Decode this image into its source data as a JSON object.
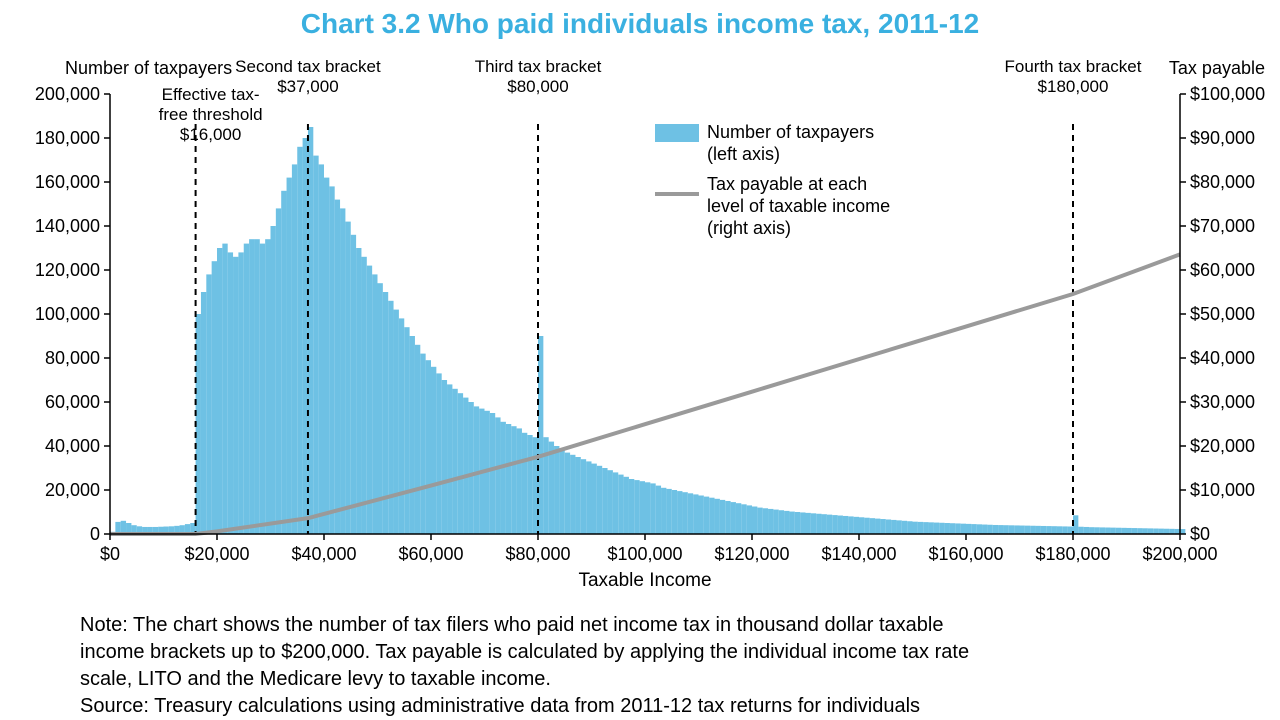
{
  "title": "Chart 3.2 Who paid individuals income tax, 2011-12",
  "axis_left_title": "Number of taxpayers",
  "axis_right_title": "Tax payable",
  "x_title": "Taxable Income",
  "note_line1": "Note: The chart shows the number of tax filers who paid net income tax in thousand dollar taxable",
  "note_line2": "income brackets up to $200,000. Tax payable is calculated by applying the individual income tax rate",
  "note_line3": "scale, LITO and the Medicare levy to taxable income.",
  "note_line4": "Source: Treasury calculations using administrative data from 2011-12 tax returns for individuals",
  "legend": {
    "series1_l1": "Number of taxpayers",
    "series1_l2": "(left axis)",
    "series2_l1": "Tax payable at each",
    "series2_l2": "level of taxable income",
    "series2_l3": "(right axis)"
  },
  "annotations": {
    "a1_l1": "Effective tax-",
    "a1_l2": "free threshold",
    "a1_l3": "$16,000",
    "a1_x": 16000,
    "a2_l1": "Second tax bracket",
    "a2_l2": "$37,000",
    "a2_x": 37000,
    "a3_l1": "Third tax bracket",
    "a3_l2": "$80,000",
    "a3_x": 80000,
    "a4_l1": "Fourth tax bracket",
    "a4_l2": "$180,000",
    "a4_x": 180000
  },
  "chart": {
    "type": "bar+line-dual-axis",
    "x_min": 0,
    "x_max": 200000,
    "x_step": 20000,
    "y_left_min": 0,
    "y_left_max": 200000,
    "y_left_step": 20000,
    "y_right_min": 0,
    "y_right_max": 100000,
    "y_right_step": 10000,
    "bar_color": "#6ec1e4",
    "line_color": "#9a9a9a",
    "tick_color": "#000000",
    "ref_line_color": "#000000",
    "background": "#ffffff",
    "title_color": "#3ab0e0",
    "line_width": 4,
    "bar_bin_width": 1000,
    "x_ticks": [
      "$0",
      "$20,000",
      "$40,000",
      "$60,000",
      "$80,000",
      "$100,000",
      "$120,000",
      "$140,000",
      "$160,000",
      "$180,000",
      "$200,000"
    ],
    "y_left_ticks": [
      "0",
      "20,000",
      "40,000",
      "60,000",
      "80,000",
      "100,000",
      "120,000",
      "140,000",
      "160,000",
      "180,000",
      "200,000"
    ],
    "y_right_ticks": [
      "$0",
      "$10,000",
      "$20,000",
      "$30,000",
      "$40,000",
      "$50,000",
      "$60,000",
      "$70,000",
      "$80,000",
      "$90,000",
      "$100,000"
    ],
    "bars": [
      [
        0,
        1000
      ],
      [
        1000,
        5500
      ],
      [
        2000,
        6000
      ],
      [
        3000,
        5000
      ],
      [
        4000,
        4000
      ],
      [
        5000,
        3500
      ],
      [
        6000,
        3200
      ],
      [
        7000,
        3200
      ],
      [
        8000,
        3200
      ],
      [
        9000,
        3300
      ],
      [
        10000,
        3400
      ],
      [
        11000,
        3500
      ],
      [
        12000,
        3700
      ],
      [
        13000,
        4000
      ],
      [
        14000,
        4500
      ],
      [
        15000,
        5000
      ],
      [
        16000,
        100000
      ],
      [
        17000,
        110000
      ],
      [
        18000,
        118000
      ],
      [
        19000,
        124000
      ],
      [
        20000,
        130000
      ],
      [
        21000,
        132000
      ],
      [
        22000,
        128000
      ],
      [
        23000,
        126000
      ],
      [
        24000,
        128000
      ],
      [
        25000,
        132000
      ],
      [
        26000,
        134000
      ],
      [
        27000,
        134000
      ],
      [
        28000,
        132000
      ],
      [
        29000,
        134000
      ],
      [
        30000,
        140000
      ],
      [
        31000,
        148000
      ],
      [
        32000,
        156000
      ],
      [
        33000,
        162000
      ],
      [
        34000,
        168000
      ],
      [
        35000,
        176000
      ],
      [
        36000,
        180000
      ],
      [
        37000,
        185000
      ],
      [
        38000,
        172000
      ],
      [
        39000,
        168000
      ],
      [
        40000,
        162000
      ],
      [
        41000,
        158000
      ],
      [
        42000,
        152000
      ],
      [
        43000,
        148000
      ],
      [
        44000,
        142000
      ],
      [
        45000,
        136000
      ],
      [
        46000,
        130000
      ],
      [
        47000,
        126000
      ],
      [
        48000,
        122000
      ],
      [
        49000,
        118000
      ],
      [
        50000,
        114000
      ],
      [
        51000,
        110000
      ],
      [
        52000,
        106000
      ],
      [
        53000,
        102000
      ],
      [
        54000,
        98000
      ],
      [
        55000,
        94000
      ],
      [
        56000,
        90000
      ],
      [
        57000,
        86000
      ],
      [
        58000,
        82000
      ],
      [
        59000,
        79000
      ],
      [
        60000,
        76000
      ],
      [
        61000,
        73000
      ],
      [
        62000,
        70000
      ],
      [
        63000,
        68000
      ],
      [
        64000,
        66000
      ],
      [
        65000,
        64000
      ],
      [
        66000,
        62000
      ],
      [
        67000,
        60000
      ],
      [
        68000,
        58000
      ],
      [
        69000,
        57000
      ],
      [
        70000,
        56000
      ],
      [
        71000,
        55000
      ],
      [
        72000,
        53000
      ],
      [
        73000,
        51000
      ],
      [
        74000,
        50000
      ],
      [
        75000,
        49000
      ],
      [
        76000,
        48000
      ],
      [
        77000,
        46000
      ],
      [
        78000,
        45000
      ],
      [
        79000,
        44000
      ],
      [
        80000,
        90000
      ],
      [
        81000,
        44000
      ],
      [
        82000,
        42000
      ],
      [
        83000,
        40000
      ],
      [
        84000,
        39000
      ],
      [
        85000,
        37000
      ],
      [
        86000,
        36000
      ],
      [
        87000,
        35000
      ],
      [
        88000,
        34000
      ],
      [
        89000,
        33000
      ],
      [
        90000,
        32000
      ],
      [
        91000,
        31000
      ],
      [
        92000,
        30000
      ],
      [
        93000,
        29000
      ],
      [
        94000,
        28000
      ],
      [
        95000,
        27000
      ],
      [
        96000,
        26000
      ],
      [
        97000,
        25000
      ],
      [
        98000,
        24500
      ],
      [
        99000,
        24000
      ],
      [
        100000,
        23500
      ],
      [
        101000,
        23000
      ],
      [
        102000,
        22000
      ],
      [
        103000,
        21000
      ],
      [
        104000,
        20500
      ],
      [
        105000,
        20000
      ],
      [
        106000,
        19500
      ],
      [
        107000,
        19000
      ],
      [
        108000,
        18500
      ],
      [
        109000,
        18000
      ],
      [
        110000,
        17500
      ],
      [
        111000,
        17000
      ],
      [
        112000,
        16500
      ],
      [
        113000,
        16000
      ],
      [
        114000,
        15500
      ],
      [
        115000,
        15000
      ],
      [
        116000,
        14500
      ],
      [
        117000,
        14000
      ],
      [
        118000,
        13500
      ],
      [
        119000,
        13000
      ],
      [
        120000,
        12500
      ],
      [
        121000,
        12000
      ],
      [
        122000,
        11700
      ],
      [
        123000,
        11400
      ],
      [
        124000,
        11100
      ],
      [
        125000,
        10800
      ],
      [
        126000,
        10500
      ],
      [
        127000,
        10200
      ],
      [
        128000,
        10000
      ],
      [
        129000,
        9800
      ],
      [
        130000,
        9600
      ],
      [
        131000,
        9400
      ],
      [
        132000,
        9200
      ],
      [
        133000,
        9000
      ],
      [
        134000,
        8800
      ],
      [
        135000,
        8600
      ],
      [
        136000,
        8400
      ],
      [
        137000,
        8200
      ],
      [
        138000,
        8000
      ],
      [
        139000,
        7800
      ],
      [
        140000,
        7600
      ],
      [
        141000,
        7400
      ],
      [
        142000,
        7200
      ],
      [
        143000,
        7000
      ],
      [
        144000,
        6800
      ],
      [
        145000,
        6600
      ],
      [
        146000,
        6400
      ],
      [
        147000,
        6200
      ],
      [
        148000,
        6000
      ],
      [
        149000,
        5800
      ],
      [
        150000,
        5600
      ],
      [
        151000,
        5500
      ],
      [
        152000,
        5400
      ],
      [
        153000,
        5300
      ],
      [
        154000,
        5200
      ],
      [
        155000,
        5100
      ],
      [
        156000,
        5000
      ],
      [
        157000,
        4900
      ],
      [
        158000,
        4800
      ],
      [
        159000,
        4700
      ],
      [
        160000,
        4600
      ],
      [
        161000,
        4500
      ],
      [
        162000,
        4400
      ],
      [
        163000,
        4300
      ],
      [
        164000,
        4200
      ],
      [
        165000,
        4100
      ],
      [
        166000,
        4050
      ],
      [
        167000,
        4000
      ],
      [
        168000,
        3950
      ],
      [
        169000,
        3900
      ],
      [
        170000,
        3850
      ],
      [
        171000,
        3800
      ],
      [
        172000,
        3750
      ],
      [
        173000,
        3700
      ],
      [
        174000,
        3650
      ],
      [
        175000,
        3600
      ],
      [
        176000,
        3550
      ],
      [
        177000,
        3500
      ],
      [
        178000,
        3450
      ],
      [
        179000,
        3400
      ],
      [
        180000,
        8500
      ],
      [
        181000,
        3300
      ],
      [
        182000,
        3200
      ],
      [
        183000,
        3100
      ],
      [
        184000,
        3050
      ],
      [
        185000,
        3000
      ],
      [
        186000,
        2950
      ],
      [
        187000,
        2900
      ],
      [
        188000,
        2850
      ],
      [
        189000,
        2800
      ],
      [
        190000,
        2750
      ],
      [
        191000,
        2700
      ],
      [
        192000,
        2650
      ],
      [
        193000,
        2600
      ],
      [
        194000,
        2550
      ],
      [
        195000,
        2500
      ],
      [
        196000,
        2450
      ],
      [
        197000,
        2400
      ],
      [
        198000,
        2350
      ],
      [
        199000,
        2300
      ],
      [
        200000,
        2250
      ]
    ],
    "line_points": [
      [
        0,
        0
      ],
      [
        16000,
        0
      ],
      [
        20000,
        600
      ],
      [
        37000,
        3600
      ],
      [
        60000,
        11000
      ],
      [
        80000,
        17550
      ],
      [
        100000,
        24950
      ],
      [
        120000,
        32350
      ],
      [
        150000,
        43450
      ],
      [
        180000,
        54550
      ],
      [
        200000,
        63550
      ]
    ]
  }
}
